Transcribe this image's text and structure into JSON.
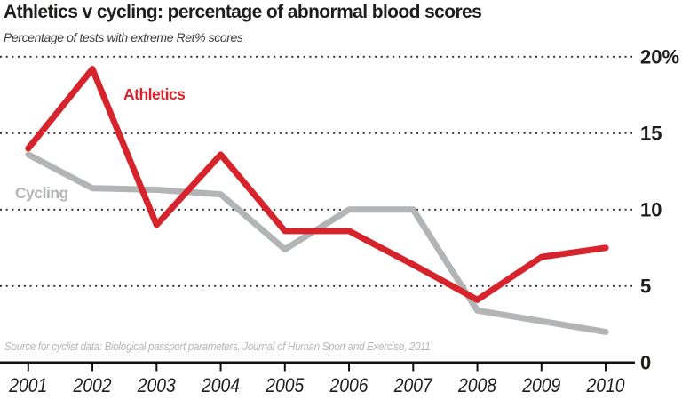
{
  "chart_data": {
    "type": "line",
    "title": "Athletics v cycling: percentage of abnormal blood scores",
    "subtitle": "Percentage of tests with extreme Ret% scores",
    "categories": [
      "2001",
      "2002",
      "2003",
      "2004",
      "2005",
      "2006",
      "2007",
      "2008",
      "2009",
      "2010"
    ],
    "series": [
      {
        "name": "Athletics",
        "color": "#d7232b",
        "values": [
          14.0,
          19.2,
          9.0,
          13.6,
          8.6,
          8.6,
          6.4,
          4.1,
          6.9,
          7.5
        ]
      },
      {
        "name": "Cycling",
        "color": "#b2b4b6",
        "values": [
          13.6,
          11.4,
          11.3,
          11.0,
          7.4,
          10.0,
          10.0,
          3.4,
          2.7,
          2.0
        ]
      }
    ],
    "yticks": [
      {
        "value": 0,
        "label": "0"
      },
      {
        "value": 5,
        "label": "5"
      },
      {
        "value": 10,
        "label": "10"
      },
      {
        "value": 15,
        "label": "15"
      },
      {
        "value": 20,
        "label": "20%"
      }
    ],
    "ylim": [
      0,
      20
    ],
    "xlabel": "",
    "ylabel": "",
    "grid": "horizontal-dotted",
    "legend_position": "inline-labels-on-chart"
  },
  "source_note": "Source for cyclist data: Biological passport parameters, Journal of Human Sport and Exercise, 2011",
  "colors": {
    "athletics": "#d7232b",
    "cycling": "#b2b4b6",
    "axis": "#111111",
    "gridline": "#2a2a2a",
    "tick_label": "#1d1d1b"
  }
}
